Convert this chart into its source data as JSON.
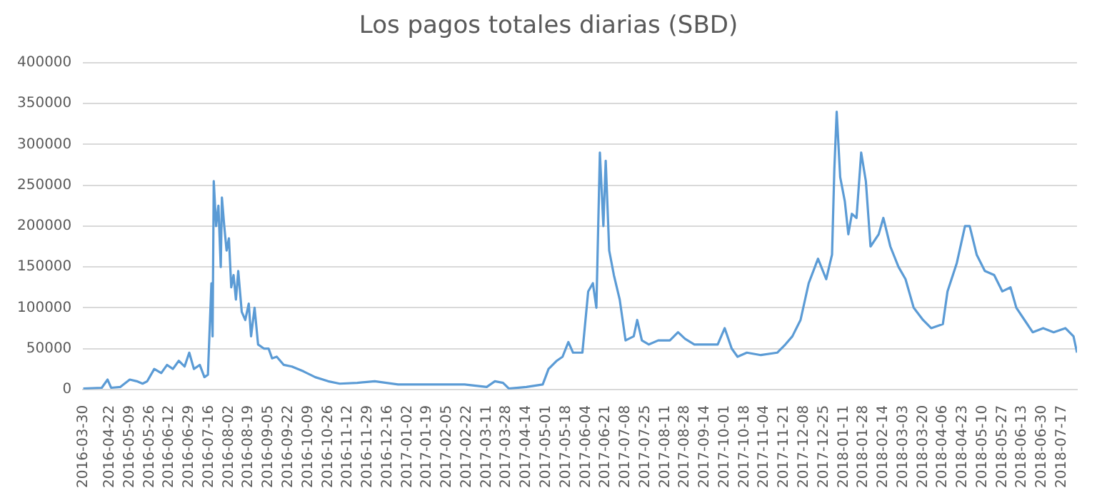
{
  "chart_data": {
    "type": "line",
    "title": "Los pagos totales diarias (SBD)",
    "x": [
      "2016-03-30",
      "2016-04-15",
      "2016-04-20",
      "2016-04-23",
      "2016-05-01",
      "2016-05-09",
      "2016-05-15",
      "2016-05-20",
      "2016-05-24",
      "2016-05-30",
      "2016-06-05",
      "2016-06-10",
      "2016-06-15",
      "2016-06-20",
      "2016-06-25",
      "2016-06-29",
      "2016-07-03",
      "2016-07-08",
      "2016-07-12",
      "2016-07-15",
      "2016-07-18",
      "2016-07-19",
      "2016-07-20",
      "2016-07-22",
      "2016-07-24",
      "2016-07-26",
      "2016-07-27",
      "2016-07-29",
      "2016-07-31",
      "2016-08-02",
      "2016-08-04",
      "2016-08-06",
      "2016-08-08",
      "2016-08-10",
      "2016-08-13",
      "2016-08-16",
      "2016-08-19",
      "2016-08-21",
      "2016-08-24",
      "2016-08-27",
      "2016-09-01",
      "2016-09-05",
      "2016-09-08",
      "2016-09-12",
      "2016-09-18",
      "2016-09-25",
      "2016-10-05",
      "2016-10-15",
      "2016-10-26",
      "2016-11-05",
      "2016-11-20",
      "2016-12-05",
      "2016-12-25",
      "2017-01-20",
      "2017-02-20",
      "2017-03-11",
      "2017-03-18",
      "2017-03-25",
      "2017-03-30",
      "2017-04-14",
      "2017-04-28",
      "2017-05-03",
      "2017-05-10",
      "2017-05-15",
      "2017-05-20",
      "2017-05-24",
      "2017-06-01",
      "2017-06-06",
      "2017-06-10",
      "2017-06-13",
      "2017-06-16",
      "2017-06-19",
      "2017-06-21",
      "2017-06-24",
      "2017-06-28",
      "2017-07-03",
      "2017-07-08",
      "2017-07-15",
      "2017-07-18",
      "2017-07-22",
      "2017-07-28",
      "2017-08-05",
      "2017-08-15",
      "2017-08-22",
      "2017-08-28",
      "2017-09-05",
      "2017-09-14",
      "2017-09-25",
      "2017-10-01",
      "2017-10-07",
      "2017-10-12",
      "2017-10-20",
      "2017-11-01",
      "2017-11-15",
      "2017-11-22",
      "2017-11-28",
      "2017-12-05",
      "2017-12-12",
      "2017-12-20",
      "2017-12-27",
      "2018-01-01",
      "2018-01-03",
      "2018-01-05",
      "2018-01-08",
      "2018-01-12",
      "2018-01-15",
      "2018-01-18",
      "2018-01-22",
      "2018-01-26",
      "2018-01-30",
      "2018-02-03",
      "2018-02-10",
      "2018-02-14",
      "2018-02-20",
      "2018-02-27",
      "2018-03-05",
      "2018-03-12",
      "2018-03-20",
      "2018-03-27",
      "2018-04-06",
      "2018-04-10",
      "2018-04-18",
      "2018-04-25",
      "2018-04-29",
      "2018-05-05",
      "2018-05-12",
      "2018-05-20",
      "2018-05-27",
      "2018-06-03",
      "2018-06-08",
      "2018-06-15",
      "2018-06-22",
      "2018-07-01",
      "2018-07-10",
      "2018-07-20",
      "2018-07-27",
      "2018-07-30"
    ],
    "series": [
      {
        "color": "#5b9bd5",
        "values": [
          1000,
          2000,
          12000,
          2000,
          3000,
          12000,
          10000,
          7000,
          10000,
          25000,
          20000,
          30000,
          25000,
          35000,
          28000,
          45000,
          25000,
          30000,
          15000,
          18000,
          130000,
          65000,
          255000,
          200000,
          225000,
          150000,
          235000,
          200000,
          170000,
          185000,
          125000,
          140000,
          110000,
          145000,
          95000,
          85000,
          105000,
          65000,
          100000,
          55000,
          50000,
          50000,
          38000,
          40000,
          30000,
          28000,
          22000,
          15000,
          10000,
          7000,
          8000,
          10000,
          6000,
          6000,
          6000,
          3000,
          10000,
          8000,
          1000,
          3000,
          6000,
          25000,
          35000,
          40000,
          58000,
          45000,
          45000,
          120000,
          130000,
          100000,
          290000,
          200000,
          280000,
          170000,
          140000,
          110000,
          60000,
          65000,
          85000,
          60000,
          55000,
          60000,
          60000,
          70000,
          62000,
          55000,
          55000,
          55000,
          75000,
          50000,
          40000,
          45000,
          42000,
          45000,
          55000,
          65000,
          85000,
          130000,
          160000,
          135000,
          165000,
          270000,
          340000,
          260000,
          230000,
          190000,
          215000,
          210000,
          290000,
          255000,
          175000,
          190000,
          210000,
          175000,
          150000,
          135000,
          100000,
          85000,
          75000,
          80000,
          120000,
          155000,
          200000,
          200000,
          165000,
          145000,
          140000,
          120000,
          125000,
          100000,
          85000,
          70000,
          75000,
          70000,
          75000,
          65000,
          45000
        ]
      }
    ],
    "xlim": [
      "2016-03-30",
      "2018-07-30"
    ],
    "xticks": [
      "2016-03-30",
      "2016-04-22",
      "2016-05-09",
      "2016-05-26",
      "2016-06-12",
      "2016-06-29",
      "2016-07-16",
      "2016-08-02",
      "2016-08-19",
      "2016-09-05",
      "2016-09-22",
      "2016-10-09",
      "2016-10-26",
      "2016-11-12",
      "2016-11-29",
      "2016-12-16",
      "2017-01-02",
      "2017-01-19",
      "2017-02-05",
      "2017-02-22",
      "2017-03-11",
      "2017-03-28",
      "2017-04-14",
      "2017-05-01",
      "2017-05-18",
      "2017-06-04",
      "2017-06-21",
      "2017-07-08",
      "2017-07-25",
      "2017-08-11",
      "2017-08-28",
      "2017-09-14",
      "2017-10-01",
      "2017-10-18",
      "2017-11-04",
      "2017-11-21",
      "2017-12-08",
      "2017-12-25",
      "2018-01-11",
      "2018-01-28",
      "2018-02-14",
      "2018-03-03",
      "2018-03-20",
      "2018-04-06",
      "2018-04-23",
      "2018-05-10",
      "2018-05-27",
      "2018-06-13",
      "2018-06-30",
      "2018-07-17"
    ],
    "ylim": [
      0,
      400000
    ],
    "yticks": [
      0,
      50000,
      100000,
      150000,
      200000,
      250000,
      300000,
      350000,
      400000
    ],
    "grid": "y",
    "legend": false,
    "marker": "none",
    "line_style": "solid"
  }
}
